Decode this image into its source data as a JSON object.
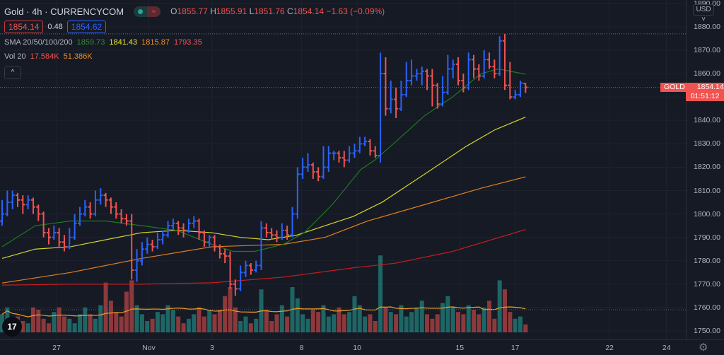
{
  "header": {
    "symbol": "Gold",
    "interval": "4h",
    "exchange": "CURRENCYCOM",
    "sep": "·",
    "ohlc": {
      "o_label": "O",
      "o": "1855.77",
      "h_label": "H",
      "h": "1855.91",
      "l_label": "L",
      "l": "1851.76",
      "c_label": "C",
      "c": "1854.14",
      "change": "−1.63 (−0.09%)"
    },
    "bid": "1854.14",
    "spread": "0.48",
    "ask": "1854.62"
  },
  "indicators": {
    "sma": {
      "label": "SMA 20/50/100/200",
      "v20": "1859.73",
      "v50": "1841.43",
      "v100": "1815.87",
      "v200": "1793.35"
    },
    "vol": {
      "label": "Vol 20",
      "v": "17.584K",
      "ma": "51.386K"
    },
    "collapse_icon": "^"
  },
  "price_axis": {
    "currency": "USD",
    "currency_icon": "chevron-down",
    "ticks": [
      "1890.00",
      "1880.00",
      "1870.00",
      "1860.00",
      "1850.00",
      "1840.00",
      "1830.00",
      "1820.00",
      "1810.00",
      "1800.00",
      "1790.00",
      "1780.00",
      "1770.00",
      "1760.00",
      "1750.00"
    ],
    "last_symbol": "GOLD",
    "last_price": "1854.14",
    "countdown": "01:51:12"
  },
  "colors": {
    "up": "#2962ff",
    "down": "#f05350",
    "vol_up": "#26a69a",
    "vol_down": "#ef5350",
    "sma20": "#1e7a1e",
    "sma50": "#d4d42a",
    "sma100": "#e0801c",
    "sma200": "#c81e1e",
    "vol_ma": "#f0a020",
    "background": "#161a25"
  },
  "logo": "TV",
  "chart_data": {
    "type": "ohlc",
    "ylim": [
      1750,
      1890
    ],
    "x_ticks": [
      {
        "label": "27",
        "bar": 10.5
      },
      {
        "label": "Nov",
        "bar": 28.3
      },
      {
        "label": "3",
        "bar": 40.5
      },
      {
        "label": "8",
        "bar": 57.8
      },
      {
        "label": "10",
        "bar": 68.5
      },
      {
        "label": "15",
        "bar": 88.3
      },
      {
        "label": "17",
        "bar": 99
      },
      {
        "label": "22",
        "bar": 117.2
      },
      {
        "label": "24",
        "bar": 128.2
      }
    ],
    "bars": [
      [
        1797,
        1806,
        1795,
        1800
      ],
      [
        1800,
        1810,
        1799,
        1805
      ],
      [
        1805,
        1810,
        1802,
        1808
      ],
      [
        1808,
        1809,
        1803,
        1806
      ],
      [
        1806,
        1808,
        1800,
        1804
      ],
      [
        1804,
        1808,
        1802,
        1806
      ],
      [
        1806,
        1807,
        1800,
        1803
      ],
      [
        1803,
        1804,
        1797,
        1800
      ],
      [
        1800,
        1801,
        1790,
        1792
      ],
      [
        1792,
        1794,
        1787,
        1790
      ],
      [
        1790,
        1795,
        1789,
        1792
      ],
      [
        1792,
        1794,
        1786,
        1788
      ],
      [
        1788,
        1791,
        1784,
        1786
      ],
      [
        1786,
        1794,
        1785,
        1790
      ],
      [
        1790,
        1800,
        1789,
        1796
      ],
      [
        1796,
        1803,
        1795,
        1800
      ],
      [
        1800,
        1806,
        1799,
        1803
      ],
      [
        1803,
        1805,
        1798,
        1800
      ],
      [
        1800,
        1810,
        1799,
        1806
      ],
      [
        1806,
        1811,
        1804,
        1808
      ],
      [
        1808,
        1809,
        1803,
        1806
      ],
      [
        1806,
        1807,
        1800,
        1803
      ],
      [
        1803,
        1805,
        1798,
        1800
      ],
      [
        1800,
        1802,
        1796,
        1798
      ],
      [
        1798,
        1800,
        1795,
        1797
      ],
      [
        1797,
        1800,
        1772,
        1776
      ],
      [
        1776,
        1785,
        1771,
        1780
      ],
      [
        1780,
        1788,
        1778,
        1785
      ],
      [
        1785,
        1790,
        1783,
        1787
      ],
      [
        1787,
        1789,
        1784,
        1786
      ],
      [
        1786,
        1792,
        1785,
        1789
      ],
      [
        1789,
        1793,
        1787,
        1791
      ],
      [
        1791,
        1797,
        1790,
        1795
      ],
      [
        1795,
        1798,
        1793,
        1796
      ],
      [
        1796,
        1797,
        1791,
        1794
      ],
      [
        1794,
        1796,
        1790,
        1793
      ],
      [
        1793,
        1798,
        1792,
        1796
      ],
      [
        1796,
        1799,
        1794,
        1797
      ],
      [
        1797,
        1798,
        1789,
        1792
      ],
      [
        1792,
        1793,
        1786,
        1788
      ],
      [
        1788,
        1791,
        1786,
        1790
      ],
      [
        1790,
        1791,
        1784,
        1786
      ],
      [
        1786,
        1787,
        1781,
        1783
      ],
      [
        1783,
        1785,
        1779,
        1782
      ],
      [
        1782,
        1784,
        1768,
        1770
      ],
      [
        1770,
        1772,
        1765,
        1768
      ],
      [
        1768,
        1778,
        1767,
        1775
      ],
      [
        1775,
        1780,
        1773,
        1778
      ],
      [
        1778,
        1779,
        1774,
        1776
      ],
      [
        1776,
        1780,
        1775,
        1778
      ],
      [
        1778,
        1797,
        1776,
        1794
      ],
      [
        1794,
        1796,
        1790,
        1792
      ],
      [
        1792,
        1794,
        1789,
        1791
      ],
      [
        1791,
        1793,
        1788,
        1790
      ],
      [
        1790,
        1796,
        1789,
        1793
      ],
      [
        1793,
        1795,
        1789,
        1791
      ],
      [
        1791,
        1803,
        1790,
        1800
      ],
      [
        1800,
        1820,
        1798,
        1817
      ],
      [
        1817,
        1824,
        1815,
        1820
      ],
      [
        1820,
        1826,
        1818,
        1821
      ],
      [
        1821,
        1822,
        1815,
        1818
      ],
      [
        1818,
        1820,
        1814,
        1816
      ],
      [
        1816,
        1829,
        1815,
        1820
      ],
      [
        1820,
        1829,
        1818,
        1826
      ],
      [
        1826,
        1827,
        1823,
        1826
      ],
      [
        1826,
        1827,
        1822,
        1824
      ],
      [
        1824,
        1827,
        1820,
        1823
      ],
      [
        1823,
        1829,
        1822,
        1826
      ],
      [
        1826,
        1830,
        1824,
        1827
      ],
      [
        1827,
        1833,
        1826,
        1830
      ],
      [
        1830,
        1833,
        1829,
        1831
      ],
      [
        1831,
        1832,
        1825,
        1827
      ],
      [
        1827,
        1829,
        1824,
        1825
      ],
      [
        1825,
        1869,
        1822,
        1860
      ],
      [
        1860,
        1867,
        1842,
        1845
      ],
      [
        1845,
        1857,
        1843,
        1849
      ],
      [
        1849,
        1854,
        1841,
        1845
      ],
      [
        1845,
        1857,
        1844,
        1851
      ],
      [
        1851,
        1865,
        1850,
        1857
      ],
      [
        1857,
        1866,
        1855,
        1859
      ],
      [
        1859,
        1862,
        1857,
        1860
      ],
      [
        1860,
        1863,
        1855,
        1861
      ],
      [
        1861,
        1862,
        1853,
        1859
      ],
      [
        1859,
        1862,
        1846,
        1855
      ],
      [
        1855,
        1856,
        1845,
        1847
      ],
      [
        1847,
        1859,
        1846,
        1852
      ],
      [
        1852,
        1868,
        1851,
        1862
      ],
      [
        1862,
        1866,
        1858,
        1864
      ],
      [
        1864,
        1867,
        1855,
        1857
      ],
      [
        1857,
        1860,
        1852,
        1854
      ],
      [
        1854,
        1869,
        1853,
        1866
      ],
      [
        1866,
        1868,
        1858,
        1862
      ],
      [
        1862,
        1864,
        1857,
        1859
      ],
      [
        1859,
        1870,
        1858,
        1866
      ],
      [
        1866,
        1869,
        1862,
        1863
      ],
      [
        1863,
        1866,
        1858,
        1860
      ],
      [
        1860,
        1876,
        1859,
        1874
      ],
      [
        1874,
        1877,
        1853,
        1855
      ],
      [
        1855,
        1865,
        1849,
        1850
      ],
      [
        1850,
        1853,
        1849,
        1851
      ],
      [
        1851,
        1857,
        1850,
        1856
      ],
      [
        1855.77,
        1855.91,
        1851.76,
        1854.14
      ]
    ],
    "volume_k": [
      40,
      55,
      30,
      35,
      25,
      20,
      55,
      50,
      30,
      20,
      45,
      55,
      35,
      30,
      20,
      40,
      55,
      40,
      30,
      60,
      110,
      70,
      45,
      35,
      90,
      115,
      60,
      40,
      25,
      30,
      45,
      40,
      60,
      50,
      35,
      20,
      30,
      40,
      55,
      35,
      50,
      40,
      50,
      80,
      100,
      55,
      25,
      35,
      20,
      30,
      95,
      50,
      25,
      40,
      60,
      35,
      100,
      75,
      40,
      30,
      50,
      45,
      60,
      35,
      40,
      55,
      40,
      45,
      80,
      60,
      35,
      40,
      25,
      170,
      55,
      45,
      40,
      60,
      35,
      45,
      55,
      70,
      40,
      30,
      40,
      65,
      80,
      55,
      45,
      40,
      60,
      50,
      40,
      55,
      70,
      30,
      115,
      95,
      45,
      30,
      35,
      17.584
    ],
    "volume_max_k": 180,
    "sma": {
      "sma20": [
        [
          0,
          1786
        ],
        [
          6.4,
          1795
        ],
        [
          13.2,
          1797
        ],
        [
          20,
          1797
        ],
        [
          26.9,
          1795
        ],
        [
          33.7,
          1793
        ],
        [
          40.5,
          1787
        ],
        [
          44.6,
          1784
        ],
        [
          48.7,
          1784
        ],
        [
          54.2,
          1787
        ],
        [
          58.3,
          1792
        ],
        [
          63.7,
          1804
        ],
        [
          69.2,
          1819
        ],
        [
          71.9,
          1823
        ],
        [
          76,
          1831
        ],
        [
          81.5,
          1842
        ],
        [
          86.9,
          1850
        ],
        [
          92.4,
          1860
        ],
        [
          95.8,
          1862
        ],
        [
          101,
          1859.73
        ]
      ],
      "sma50": [
        [
          0,
          1781
        ],
        [
          6.4,
          1785
        ],
        [
          13.2,
          1786
        ],
        [
          20,
          1789
        ],
        [
          26.9,
          1792
        ],
        [
          33.7,
          1793
        ],
        [
          40.5,
          1792
        ],
        [
          46,
          1790
        ],
        [
          51.4,
          1789
        ],
        [
          56.9,
          1791
        ],
        [
          62.3,
          1795
        ],
        [
          67.8,
          1799
        ],
        [
          73.3,
          1805
        ],
        [
          81.5,
          1817
        ],
        [
          89.6,
          1829
        ],
        [
          95.1,
          1836
        ],
        [
          101,
          1841.43
        ]
      ],
      "sma100": [
        [
          0,
          1770.5
        ],
        [
          13.2,
          1775
        ],
        [
          26.9,
          1781
        ],
        [
          40.5,
          1786
        ],
        [
          54.2,
          1787
        ],
        [
          62.3,
          1790
        ],
        [
          70.5,
          1797
        ],
        [
          81.5,
          1804
        ],
        [
          92.4,
          1811
        ],
        [
          101,
          1815.87
        ]
      ],
      "sma200": [
        [
          0,
          1769.6
        ],
        [
          13.2,
          1770
        ],
        [
          26.9,
          1770
        ],
        [
          40.5,
          1770.6
        ],
        [
          54.2,
          1773
        ],
        [
          67.8,
          1777
        ],
        [
          76,
          1779
        ],
        [
          86.9,
          1784
        ],
        [
          101,
          1793.35
        ]
      ]
    },
    "vol_ma_period": 20,
    "last_price_line": 1854.14,
    "high_line": 1877
  }
}
